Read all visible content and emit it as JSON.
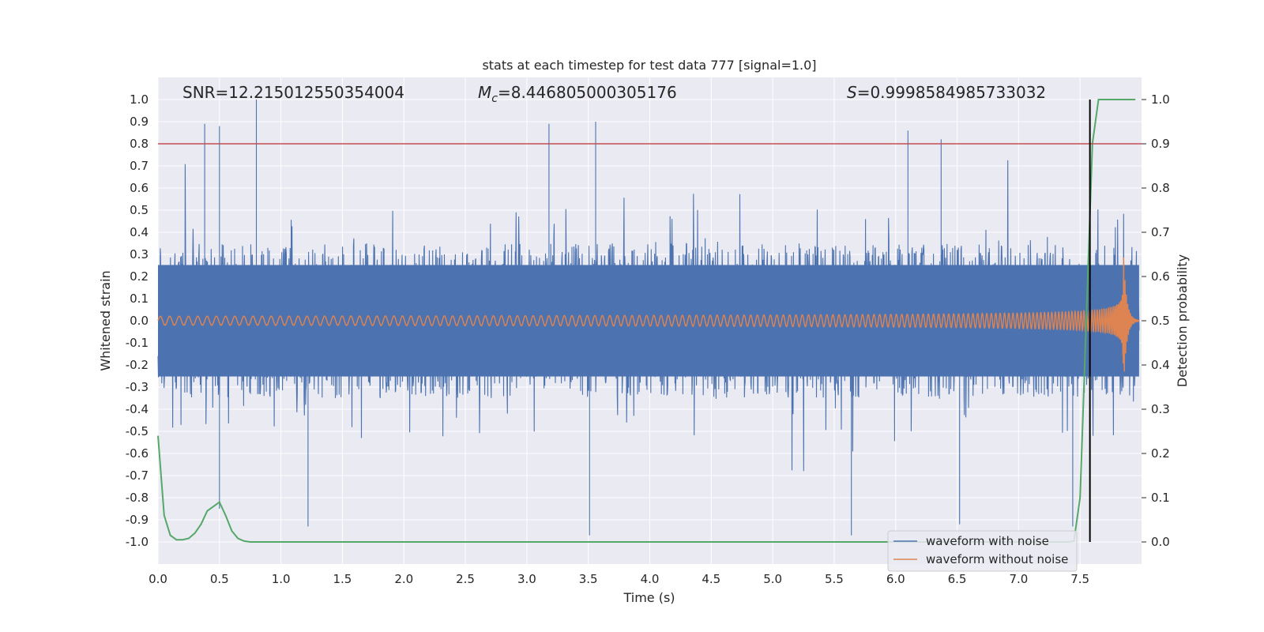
{
  "chart_data": {
    "type": "line",
    "title": "stats at each timestep for test data 777 [signal=1.0]",
    "xlabel": "Time (s)",
    "ylabel": "Whitened strain",
    "y2label": "Detection probability",
    "xlim": [
      0.0,
      8.0
    ],
    "ylim": [
      -1.1,
      1.1
    ],
    "y2lim": [
      -0.05,
      1.05
    ],
    "xticks": [
      0.0,
      0.5,
      1.0,
      1.5,
      2.0,
      2.5,
      3.0,
      3.5,
      4.0,
      4.5,
      5.0,
      5.5,
      6.0,
      6.5,
      7.0,
      7.5
    ],
    "xtick_labels": [
      "0.0",
      "0.5",
      "1.0",
      "1.5",
      "2.0",
      "2.5",
      "3.0",
      "3.5",
      "4.0",
      "4.5",
      "5.0",
      "5.5",
      "6.0",
      "6.5",
      "7.0",
      "7.5"
    ],
    "yticks": [
      1.0,
      0.9,
      0.8,
      0.7,
      0.6,
      0.5,
      0.4,
      0.3,
      0.2,
      0.1,
      0.0,
      -0.1,
      -0.2,
      -0.3,
      -0.4,
      -0.5,
      -0.6,
      -0.7,
      -0.8,
      -0.9,
      -1.0
    ],
    "ytick_labels": [
      "1.0",
      "0.9",
      "0.8",
      "0.7",
      "0.6",
      "0.5",
      "0.4",
      "0.3",
      "0.2",
      "0.1",
      "0.0",
      "-0.1",
      "-0.2",
      "-0.3",
      "-0.4",
      "-0.5",
      "-0.6",
      "-0.7",
      "-0.8",
      "-0.9",
      "-1.0"
    ],
    "y2ticks": [
      1.0,
      0.9,
      0.8,
      0.7,
      0.6,
      0.5,
      0.4,
      0.3,
      0.2,
      0.1,
      0.0
    ],
    "y2tick_labels": [
      "1.0",
      "0.9",
      "0.8",
      "0.7",
      "0.6",
      "0.5",
      "0.4",
      "0.3",
      "0.2",
      "0.1",
      "0.0"
    ],
    "threshold": 0.8,
    "detection_time": 7.58,
    "annotations": {
      "snr": "SNR=12.215012550354004",
      "mc_symbol": "M",
      "mc_sub": "c",
      "mc_value": "=8.446805000305176",
      "s_symbol": "S",
      "s_value": "=0.9998584985733032"
    },
    "series": [
      {
        "name": "waveform with noise",
        "color": "#4c72b0",
        "envelope": 0.35,
        "peak_times": [
          0.38,
          0.5,
          0.8,
          3.18,
          3.56,
          6.1,
          6.37
        ],
        "peak_values": [
          0.89,
          0.88,
          1.0,
          0.89,
          0.9,
          0.86,
          0.82
        ],
        "trough_times": [
          0.5,
          1.22,
          3.51,
          5.64,
          6.52,
          7.44
        ],
        "trough_values": [
          -0.85,
          -0.93,
          -0.97,
          -0.97,
          -0.92,
          -0.93
        ]
      },
      {
        "name": "waveform without noise",
        "color": "#dd8452",
        "f_start": 13.0,
        "f_end": 55.0,
        "t_merge": 7.85,
        "amp_start": 0.02,
        "amp_peak": 0.34
      },
      {
        "name": "detection probability",
        "color": "#55a868",
        "x": [
          0.0,
          0.05,
          0.1,
          0.15,
          0.2,
          0.25,
          0.3,
          0.35,
          0.4,
          0.45,
          0.5,
          0.55,
          0.6,
          0.65,
          0.7,
          0.75,
          0.8,
          0.85,
          1.0,
          2.0,
          3.0,
          4.0,
          5.0,
          6.0,
          7.0,
          7.4,
          7.45,
          7.5,
          7.55,
          7.6,
          7.65,
          7.7,
          7.95
        ],
        "y": [
          0.24,
          0.06,
          0.015,
          0.005,
          0.005,
          0.008,
          0.02,
          0.04,
          0.07,
          0.08,
          0.09,
          0.06,
          0.025,
          0.008,
          0.002,
          0.0,
          0.0,
          0.0,
          0.0,
          0.0,
          0.0,
          0.0,
          0.0,
          0.0,
          0.0,
          0.0,
          0.002,
          0.1,
          0.5,
          0.9,
          1.0,
          1.0,
          1.0
        ]
      }
    ],
    "legend": {
      "position": "lower right",
      "entries": [
        "waveform with noise",
        "waveform without noise"
      ]
    },
    "colors": {
      "background": "#eaeaf2",
      "grid": "#ffffff",
      "threshold": "#c44e52",
      "detection_line": "#000000"
    }
  }
}
